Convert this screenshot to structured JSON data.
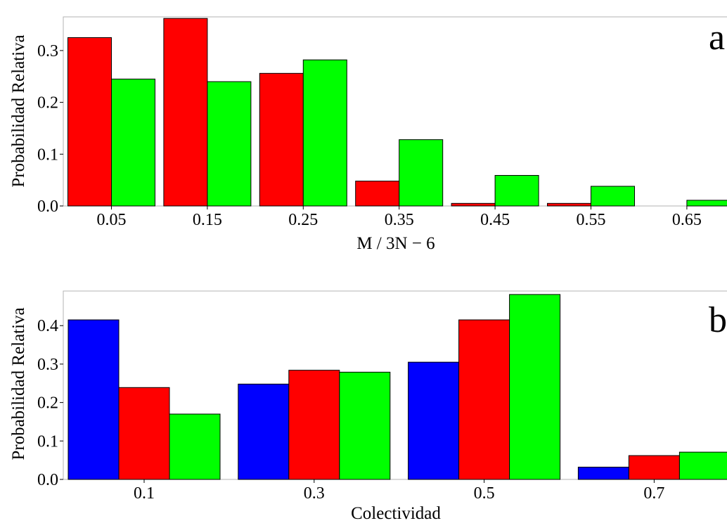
{
  "chart_data": [
    {
      "type": "bar",
      "panel_label": "a",
      "xlabel": "M / 3N − 6",
      "ylabel": "Probabilidad Relativa",
      "categories": [
        "0.05",
        "0.15",
        "0.25",
        "0.35",
        "0.45",
        "0.55",
        "0.65"
      ],
      "ylim": [
        0,
        0.365
      ],
      "yticks": [
        0.0,
        0.1,
        0.2,
        0.3
      ],
      "ytick_labels": [
        "0.0",
        "0.1",
        "0.2",
        "0.3"
      ],
      "grid": false,
      "series": [
        {
          "color": "#ff0000",
          "values": [
            0.325,
            0.362,
            0.256,
            0.048,
            0.005,
            0.005,
            0.0
          ]
        },
        {
          "color": "#00ff00",
          "values": [
            0.245,
            0.24,
            0.282,
            0.128,
            0.059,
            0.038,
            0.011
          ]
        }
      ]
    },
    {
      "type": "bar",
      "panel_label": "b",
      "xlabel": "Colectividad",
      "ylabel": "Probabilidad Relativa",
      "categories": [
        "0.1",
        "0.3",
        "0.5",
        "0.7"
      ],
      "ylim": [
        0,
        0.49
      ],
      "yticks": [
        0.0,
        0.1,
        0.2,
        0.3,
        0.4
      ],
      "ytick_labels": [
        "0.0",
        "0.1",
        "0.2",
        "0.3",
        "0.4"
      ],
      "grid": false,
      "series": [
        {
          "color": "#0000ff",
          "values": [
            0.415,
            0.248,
            0.305,
            0.032
          ]
        },
        {
          "color": "#ff0000",
          "values": [
            0.239,
            0.284,
            0.415,
            0.062
          ]
        },
        {
          "color": "#00ff00",
          "values": [
            0.17,
            0.279,
            0.481,
            0.071
          ]
        }
      ]
    }
  ]
}
